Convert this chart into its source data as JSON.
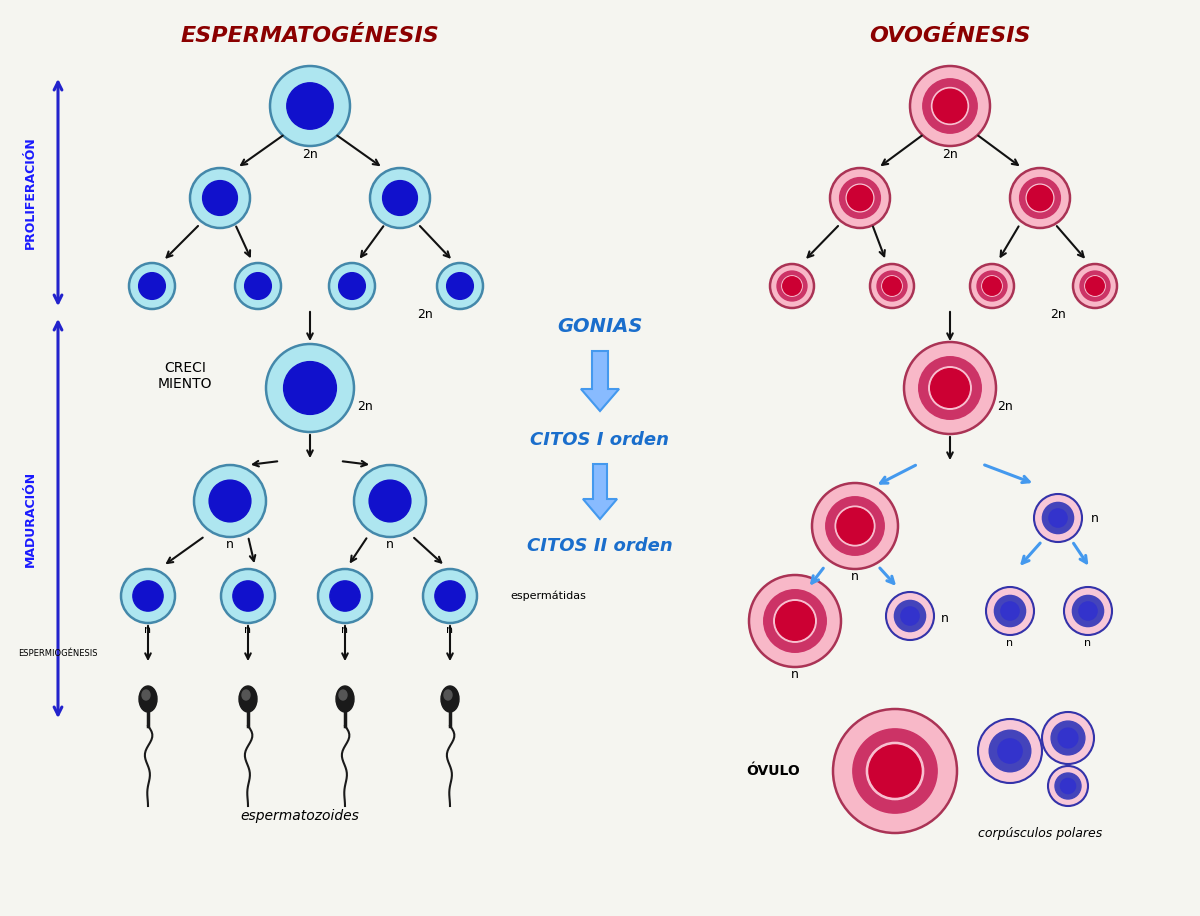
{
  "bg_color": "#f5f5f0",
  "title_esperma": "ESPERMATOGÉNESIS",
  "title_ovo": "OVOGÉNESIS",
  "title_color": "#8B0000",
  "center_label1": "GONIAS",
  "center_label2": "CITOS I orden",
  "center_label3": "CITOS II orden",
  "center_label_color": "#1a6ecc",
  "left_label_color": "#1a1aff",
  "sperm_outer": "#aee6f0",
  "sperm_border": "#4488aa",
  "sperm_inner": "#1111cc",
  "ovo_outer": "#f8b8c8",
  "ovo_border": "#aa3355",
  "ovo_ring": "#cc3366",
  "ovo_core": "#cc0033",
  "polar_outer": "#f8c8d8",
  "polar_border": "#3333aa",
  "polar_ring": "#4444bb",
  "polar_core": "#3333cc",
  "arrow_black": "#111111",
  "arrow_blue": "#4499ee",
  "label_2n": "2n",
  "label_n": "n"
}
